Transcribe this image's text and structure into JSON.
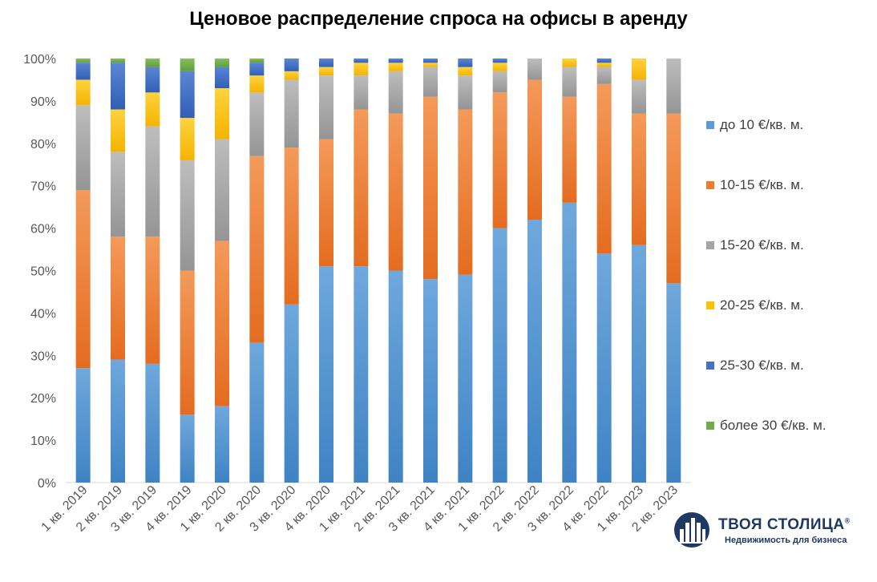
{
  "chart_data": {
    "type": "bar",
    "stacked": true,
    "percent": true,
    "title": "Ценовое распределение спроса на офисы в аренду",
    "xlabel": "",
    "ylabel": "",
    "ylim": [
      0,
      100
    ],
    "yticks": [
      "0%",
      "10%",
      "20%",
      "30%",
      "40%",
      "50%",
      "60%",
      "70%",
      "80%",
      "90%",
      "100%"
    ],
    "legend_position": "right",
    "categories": [
      "1 кв. 2019",
      "2 кв. 2019",
      "3 кв. 2019",
      "4 кв. 2019",
      "1 кв. 2020",
      "2 кв. 2020",
      "3 кв. 2020",
      "4 кв. 2020",
      "1 кв. 2021",
      "2 кв. 2021",
      "3 кв. 2021",
      "4 кв. 2021",
      "1 кв. 2022",
      "2 кв. 2022",
      "3 кв. 2022",
      "4 кв. 2022",
      "1 кв. 2023",
      "2 кв. 2023"
    ],
    "series": [
      {
        "name": "до 10 €/кв. м.",
        "color": "#5b9bd5",
        "values": [
          27,
          29,
          28,
          16,
          18,
          33,
          42,
          51,
          51,
          50,
          48,
          49,
          60,
          62,
          66,
          54,
          56,
          47
        ]
      },
      {
        "name": "10-15 €/кв. м.",
        "color": "#ed7d31",
        "values": [
          42,
          29,
          30,
          34,
          39,
          44,
          37,
          30,
          37,
          37,
          43,
          39,
          32,
          33,
          25,
          40,
          31,
          40
        ]
      },
      {
        "name": "15-20 €/кв. м.",
        "color": "#a5a5a5",
        "values": [
          20,
          20,
          26,
          26,
          24,
          15,
          16,
          15,
          8,
          10,
          7,
          8,
          5,
          5,
          7,
          4,
          8,
          13
        ]
      },
      {
        "name": "20-25 €/кв. м.",
        "color": "#ffc000",
        "values": [
          6,
          10,
          8,
          10,
          12,
          4,
          2,
          2,
          3,
          2,
          1,
          2,
          2,
          0,
          2,
          1,
          5,
          0
        ]
      },
      {
        "name": "25-30 €/кв. м.",
        "color": "#4472c4",
        "values": [
          4,
          11,
          6,
          11,
          5,
          3,
          3,
          2,
          1,
          1,
          1,
          2,
          1,
          0,
          0,
          1,
          0,
          0
        ]
      },
      {
        "name": "более 30 €/кв. м.",
        "color": "#70ad47",
        "values": [
          1,
          1,
          2,
          3,
          2,
          1,
          0,
          0,
          0,
          0,
          0,
          0,
          0,
          0,
          0,
          0,
          0,
          0
        ]
      }
    ]
  },
  "logo": {
    "name": "ТВОЯ СТОЛИЦА",
    "registered": "®",
    "tagline": "Недвижимость для бизнеса"
  }
}
